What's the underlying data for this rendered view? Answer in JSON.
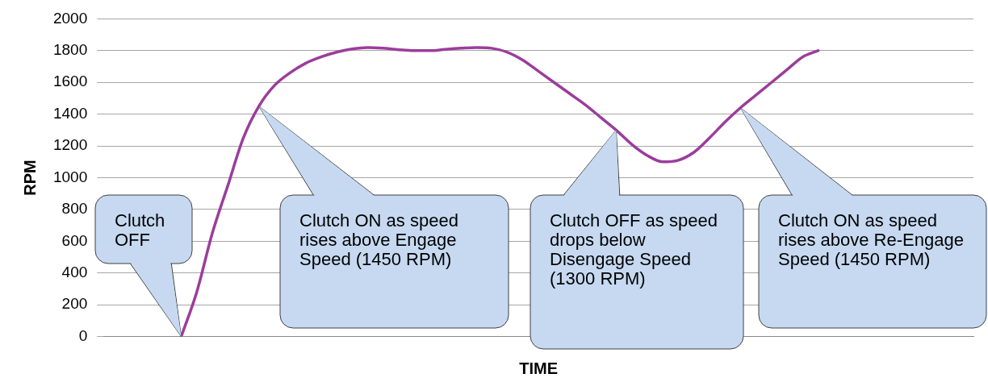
{
  "chart_data": {
    "type": "line",
    "xlabel": "TIME",
    "ylabel": "RPM",
    "categories": [
      null,
      null,
      null,
      null,
      null,
      null,
      null,
      null,
      null,
      null,
      null,
      null,
      null,
      null,
      null,
      null,
      null,
      null,
      null,
      null,
      null,
      null,
      null,
      null,
      null,
      null,
      null,
      null,
      null,
      null,
      null,
      null,
      null,
      null,
      null,
      null,
      null,
      null,
      null,
      null,
      null,
      null,
      null,
      null,
      null,
      null,
      null,
      null,
      null,
      null,
      null,
      null,
      null,
      null,
      null,
      null,
      null
    ],
    "series": [
      {
        "color": "#9b3d9b",
        "values": [
          null,
          null,
          null,
          null,
          null,
          0,
          280,
          650,
          950,
          1250,
          1450,
          1580,
          1660,
          1720,
          1760,
          1790,
          1810,
          1820,
          1815,
          1805,
          1800,
          1800,
          1808,
          1815,
          1820,
          1815,
          1790,
          1740,
          1670,
          1600,
          1530,
          1460,
          1380,
          1300,
          1210,
          1140,
          1100,
          1110,
          1160,
          1250,
          1350,
          1440,
          1520,
          1600,
          1680,
          1760,
          1800,
          null,
          null,
          null,
          null,
          null,
          null,
          null,
          null,
          null,
          null
        ]
      }
    ],
    "ylim": [
      0,
      2000
    ],
    "yticks": [
      0,
      200,
      400,
      600,
      800,
      1000,
      1200,
      1400,
      1600,
      1800,
      2000
    ],
    "grid": "y",
    "legend": false,
    "marker": "none",
    "line_style": "solid",
    "annotations": [
      "Clutch OFF",
      "Clutch ON as speed rises above Engage Speed (1450 RPM)",
      "Clutch OFF as speed drops below Disengage Speed (1300 RPM)",
      "Clutch ON as speed rises above Re-Engage Speed (1450 RPM)"
    ]
  }
}
